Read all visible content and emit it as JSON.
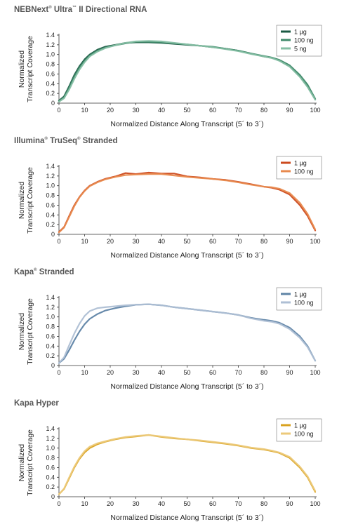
{
  "chart_data": [
    {
      "type": "line",
      "title": "NEBNext® Ultra™ II Directional RNA",
      "title_parts": [
        [
          "NEBNext",
          false
        ],
        [
          "®",
          true
        ],
        [
          " Ultra",
          false
        ],
        [
          "™",
          true
        ],
        [
          " II Directional RNA",
          false
        ]
      ],
      "xlabel": "Normalized Distance Along Transcript (5´ to 3´)",
      "ylabel": [
        "Normalized",
        "Transcript Coverage"
      ],
      "xlim": [
        0,
        100
      ],
      "ylim": [
        0,
        1.4
      ],
      "xticks": [
        "0",
        "10",
        "20",
        "30",
        "40",
        "50",
        "60",
        "70",
        "80",
        "90",
        "100"
      ],
      "yticks": [
        "0",
        "0.2",
        "0.4",
        "0.6",
        "0.8",
        "1.0",
        "1.2",
        "1.4"
      ],
      "legend_position": "top-right",
      "x": [
        0,
        2,
        4,
        6,
        8,
        10,
        12,
        15,
        18,
        22,
        26,
        30,
        35,
        40,
        45,
        50,
        55,
        60,
        65,
        70,
        75,
        80,
        83,
        86,
        90,
        94,
        97,
        100
      ],
      "series": [
        {
          "name": "1 µg",
          "color": "#1a5a43",
          "values": [
            0.05,
            0.14,
            0.35,
            0.58,
            0.76,
            0.9,
            1.0,
            1.1,
            1.16,
            1.2,
            1.24,
            1.25,
            1.25,
            1.24,
            1.22,
            1.2,
            1.18,
            1.15,
            1.12,
            1.08,
            1.02,
            0.96,
            0.93,
            0.88,
            0.76,
            0.55,
            0.35,
            0.08
          ]
        },
        {
          "name": "100 ng",
          "color": "#3f8a6a",
          "values": [
            0.04,
            0.12,
            0.32,
            0.55,
            0.73,
            0.87,
            0.98,
            1.08,
            1.14,
            1.19,
            1.23,
            1.26,
            1.26,
            1.25,
            1.23,
            1.21,
            1.18,
            1.16,
            1.12,
            1.08,
            1.02,
            0.97,
            0.94,
            0.89,
            0.78,
            0.58,
            0.38,
            0.09
          ]
        },
        {
          "name": "5 ng",
          "color": "#86bfa4",
          "values": [
            0.03,
            0.1,
            0.28,
            0.5,
            0.69,
            0.84,
            0.96,
            1.06,
            1.13,
            1.19,
            1.24,
            1.27,
            1.28,
            1.27,
            1.24,
            1.21,
            1.18,
            1.15,
            1.11,
            1.07,
            1.01,
            0.96,
            0.93,
            0.87,
            0.75,
            0.54,
            0.33,
            0.07
          ]
        }
      ]
    },
    {
      "type": "line",
      "title": "Illumina® TruSeq® Stranded",
      "title_parts": [
        [
          "Illumina",
          false
        ],
        [
          "®",
          true
        ],
        [
          " TruSeq",
          false
        ],
        [
          "®",
          true
        ],
        [
          " Stranded",
          false
        ]
      ],
      "xlabel": "Normalized Distance Along Transcript (5´ to 3´)",
      "ylabel": [
        "Normalized",
        "Transcript Coverage"
      ],
      "xlim": [
        0,
        100
      ],
      "ylim": [
        0,
        1.4
      ],
      "xticks": [
        "0",
        "10",
        "20",
        "30",
        "40",
        "50",
        "60",
        "70",
        "80",
        "90",
        "100"
      ],
      "yticks": [
        "0",
        "0.2",
        "0.4",
        "0.6",
        "0.8",
        "1.0",
        "1.2",
        "1.4"
      ],
      "legend_position": "top-right",
      "x": [
        0,
        2,
        4,
        6,
        8,
        10,
        12,
        15,
        18,
        22,
        26,
        30,
        35,
        40,
        45,
        50,
        55,
        60,
        65,
        70,
        75,
        80,
        83,
        86,
        90,
        94,
        97,
        100
      ],
      "series": [
        {
          "name": "1 µg",
          "color": "#cc4a1e",
          "values": [
            0.05,
            0.15,
            0.38,
            0.6,
            0.77,
            0.9,
            1.0,
            1.08,
            1.14,
            1.19,
            1.26,
            1.24,
            1.27,
            1.25,
            1.25,
            1.19,
            1.17,
            1.14,
            1.12,
            1.08,
            1.03,
            0.98,
            0.96,
            0.92,
            0.82,
            0.6,
            0.38,
            0.08
          ]
        },
        {
          "name": "100 ng",
          "color": "#e88a4e",
          "values": [
            0.04,
            0.14,
            0.36,
            0.58,
            0.76,
            0.89,
            0.99,
            1.07,
            1.13,
            1.18,
            1.22,
            1.23,
            1.24,
            1.24,
            1.21,
            1.18,
            1.16,
            1.14,
            1.11,
            1.07,
            1.02,
            0.98,
            0.97,
            0.94,
            0.85,
            0.65,
            0.42,
            0.1
          ]
        }
      ]
    },
    {
      "type": "line",
      "title": "Kapa® Stranded",
      "title_parts": [
        [
          "Kapa",
          false
        ],
        [
          "®",
          true
        ],
        [
          " Stranded",
          false
        ]
      ],
      "xlabel": "Normalized Distance Along Transcript (5´ to 3´)",
      "ylabel": [
        "Normalized",
        "Transcript Coverage"
      ],
      "xlim": [
        0,
        100
      ],
      "ylim": [
        0,
        1.4
      ],
      "xticks": [
        "0",
        "10",
        "20",
        "30",
        "40",
        "50",
        "60",
        "70",
        "80",
        "90",
        "100"
      ],
      "yticks": [
        "0",
        "0.2",
        "0.4",
        "0.6",
        "0.8",
        "1.0",
        "1.2",
        "1.4"
      ],
      "legend_position": "top-right",
      "x": [
        0,
        2,
        4,
        6,
        8,
        10,
        12,
        15,
        18,
        22,
        26,
        30,
        35,
        40,
        45,
        50,
        55,
        60,
        65,
        70,
        75,
        80,
        83,
        86,
        90,
        94,
        97,
        100
      ],
      "series": [
        {
          "name": "1 µg",
          "color": "#5f84a6",
          "values": [
            0.05,
            0.14,
            0.32,
            0.52,
            0.7,
            0.85,
            0.96,
            1.06,
            1.13,
            1.18,
            1.22,
            1.25,
            1.26,
            1.24,
            1.2,
            1.17,
            1.14,
            1.11,
            1.08,
            1.04,
            0.98,
            0.94,
            0.92,
            0.88,
            0.78,
            0.6,
            0.4,
            0.1
          ]
        },
        {
          "name": "100 ng",
          "color": "#aebfd4",
          "values": [
            0.05,
            0.17,
            0.42,
            0.66,
            0.86,
            1.02,
            1.12,
            1.18,
            1.2,
            1.22,
            1.24,
            1.25,
            1.26,
            1.24,
            1.2,
            1.17,
            1.14,
            1.11,
            1.08,
            1.04,
            0.97,
            0.92,
            0.9,
            0.86,
            0.75,
            0.57,
            0.38,
            0.1
          ]
        }
      ]
    },
    {
      "type": "line",
      "title": "Kapa Hyper",
      "title_parts": [
        [
          "Kapa Hyper",
          false
        ]
      ],
      "xlabel": "Normalized Distance Along Transcript (5´ to 3´)",
      "ylabel": [
        "Normalized",
        "Transcript Coverage"
      ],
      "xlim": [
        0,
        100
      ],
      "ylim": [
        0,
        1.4
      ],
      "xticks": [
        "0",
        "10",
        "20",
        "30",
        "40",
        "50",
        "60",
        "70",
        "80",
        "90",
        "100"
      ],
      "yticks": [
        "0",
        "0.2",
        "0.4",
        "0.6",
        "0.8",
        "1.0",
        "1.2",
        "1.4"
      ],
      "legend_position": "top-right",
      "x": [
        0,
        2,
        4,
        6,
        8,
        10,
        12,
        15,
        18,
        22,
        26,
        30,
        35,
        40,
        45,
        50,
        55,
        60,
        65,
        70,
        75,
        80,
        83,
        86,
        90,
        94,
        97,
        100
      ],
      "series": [
        {
          "name": "1 µg",
          "color": "#d9a21f",
          "values": [
            0.05,
            0.16,
            0.38,
            0.6,
            0.78,
            0.91,
            1.0,
            1.08,
            1.13,
            1.18,
            1.22,
            1.24,
            1.27,
            1.23,
            1.2,
            1.18,
            1.15,
            1.12,
            1.09,
            1.05,
            1.0,
            0.97,
            0.94,
            0.9,
            0.8,
            0.6,
            0.4,
            0.1
          ]
        },
        {
          "name": "100 ng",
          "color": "#ecc97a",
          "values": [
            0.05,
            0.17,
            0.4,
            0.62,
            0.8,
            0.94,
            1.03,
            1.1,
            1.14,
            1.19,
            1.23,
            1.25,
            1.27,
            1.24,
            1.21,
            1.18,
            1.16,
            1.13,
            1.1,
            1.06,
            1.01,
            0.98,
            0.95,
            0.91,
            0.82,
            0.62,
            0.42,
            0.12
          ]
        }
      ]
    }
  ]
}
